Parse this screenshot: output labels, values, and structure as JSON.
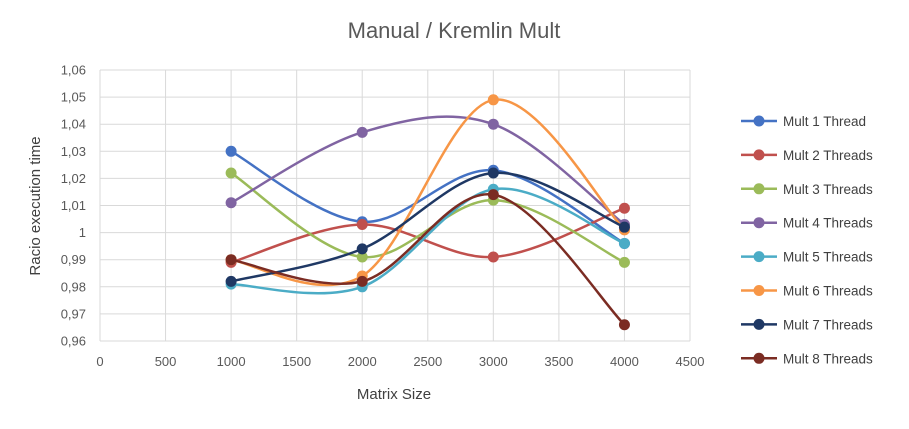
{
  "chart_data": {
    "type": "line",
    "title": "Manual / Kremlin Mult",
    "xlabel": "Matrix Size",
    "ylabel": "Racio execution time",
    "xlim": [
      0,
      4500
    ],
    "ylim": [
      0.96,
      1.06
    ],
    "x_ticks": [
      0,
      500,
      1000,
      1500,
      2000,
      2500,
      3000,
      3500,
      4000,
      4500
    ],
    "x_tick_labels": [
      "0",
      "500",
      "1000",
      "1500",
      "2000",
      "2500",
      "3000",
      "3500",
      "4000",
      "4500"
    ],
    "y_ticks": [
      0.96,
      0.97,
      0.98,
      0.99,
      1.0,
      1.01,
      1.02,
      1.03,
      1.04,
      1.05,
      1.06
    ],
    "y_tick_labels": [
      "0,96",
      "0,97",
      "0,98",
      "0,99",
      "1",
      "1,01",
      "1,02",
      "1,03",
      "1,04",
      "1,05",
      "1,06"
    ],
    "grid": "vertical and horizontal",
    "smooth": true,
    "legend_position": "right",
    "x": [
      1000,
      2000,
      3000,
      4000
    ],
    "series": [
      {
        "name": "Mult 1 Thread",
        "color": "#4472c4",
        "values": [
          1.03,
          1.004,
          1.023,
          0.996
        ]
      },
      {
        "name": "Mult 2 Threads",
        "color": "#c0504d",
        "values": [
          0.989,
          1.003,
          0.991,
          1.009
        ]
      },
      {
        "name": "Mult 3 Threads",
        "color": "#9bbb59",
        "values": [
          1.022,
          0.991,
          1.012,
          0.989
        ]
      },
      {
        "name": "Mult 4 Threads",
        "color": "#8064a2",
        "values": [
          1.011,
          1.037,
          1.04,
          1.003
        ]
      },
      {
        "name": "Mult 5 Threads",
        "color": "#4bacc6",
        "values": [
          0.981,
          0.98,
          1.016,
          0.996
        ]
      },
      {
        "name": "Mult 6 Threads",
        "color": "#f79646",
        "values": [
          0.99,
          0.984,
          1.049,
          1.001
        ]
      },
      {
        "name": "Mult 7 Threads",
        "color": "#1f3864",
        "values": [
          0.982,
          0.994,
          1.022,
          1.002
        ]
      },
      {
        "name": "Mult 8 Threads",
        "color": "#7b2c23",
        "values": [
          0.99,
          0.982,
          1.014,
          0.966
        ]
      }
    ]
  }
}
